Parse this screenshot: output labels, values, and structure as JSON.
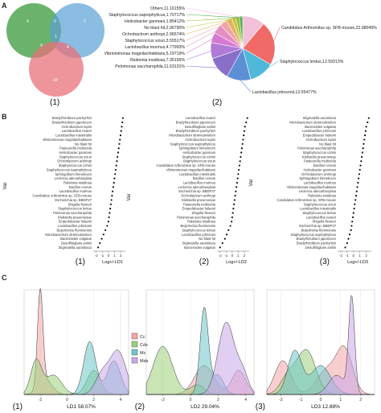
{
  "figure": {
    "panel_a": {
      "letter": "A",
      "venn": {
        "counts": [
          "4",
          "0",
          "2",
          "4",
          "1",
          "4",
          "10"
        ],
        "colors": [
          "#3a9a3a",
          "#5a9fd4",
          "#e8707a"
        ]
      },
      "pie": {
        "slices": [
          {
            "label": "Others,11.16155%",
            "value": 11.16155,
            "color": "#f2c0d9"
          },
          {
            "label": "Candidatus Arthromitus sp. SFB-mouse,22.08049%",
            "value": 22.08049,
            "color": "#f06a67"
          },
          {
            "label": "Staphylococcus lentus,12.59313%",
            "value": 12.59313,
            "color": "#4fb8d9"
          },
          {
            "label": "Lactobacillus johnsonii,12.05477%",
            "value": 12.05477,
            "color": "#5c8fd6"
          },
          {
            "label": "Pelomonas saccharophila,11.63131%",
            "value": 11.63131,
            "color": "#8a6fc8"
          },
          {
            "label": "Ralstonia insidiosa,7.95156%",
            "value": 7.95156,
            "color": "#b07ad6"
          },
          {
            "label": "Vibrionimonas magnilacihabitans,5.19719%",
            "value": 5.19719,
            "color": "#d47ad0"
          },
          {
            "label": "Lactobacillus murinus,4.77993%",
            "value": 4.77993,
            "color": "#e38ec0"
          },
          {
            "label": "Staphylococcus sciuri,3.55517%",
            "value": 3.55517,
            "color": "#f0a2a8"
          },
          {
            "label": "Ochrobactrum anthropi,2.96574%",
            "value": 2.96574,
            "color": "#e0b45a"
          },
          {
            "label": "No blast hit,2.06790%",
            "value": 2.0679,
            "color": "#c9c040"
          },
          {
            "label": "Helicobacter ganmani,1.85412%",
            "value": 1.85412,
            "color": "#8fbf3a"
          },
          {
            "label": "Staphylococcus saprophyticus,1.70717%",
            "value": 1.70717,
            "color": "#4fb04f"
          }
        ]
      },
      "captions": [
        "(1)",
        "(2)"
      ]
    },
    "panel_b": {
      "letter": "B",
      "y_title": "Var",
      "lda1": {
        "labels": [
          "Bradyrhizobium pachyrhizi",
          "Bradyrhizobium japonicum",
          "Ochrobactrum lupini",
          "Lactobacillus reuteri",
          "Lactobacillus intestinalis",
          "Vibrionimonas magnilacihabitans",
          "No blast hit",
          "Pasteurella multocida",
          "Helicobacter ganmani",
          "Staphylococcus sciuri",
          "Ochrobactrum anthropi",
          "Staphylococcus cohnii",
          "Staphylococcus saprophyticus",
          "Sphingobium limneticum",
          "Leclercia adecarboxylata",
          "Ralstonia insidiosa",
          "Bacillus cereus",
          "Lactobacillus murinus",
          "Candidatus Arthromitus sp. SFB-mouse",
          "Escherichia sp. BBDP27",
          "Shigella flexneri",
          "Staphylococcus lentus",
          "Pelomonas saccharophila",
          "Klebsiella pneumoniae",
          "Empedobacter falsenii",
          "Lactobacillus johnsonii",
          "Beijerinckia fluminensis",
          "Microbacterium deminutiviolum",
          "Bacteroides vulgatus",
          "Desulfitoglans anilini",
          "Stigmatella aurantiaca"
        ],
        "values": [
          2.4,
          2.3,
          2.2,
          2.1,
          2.0,
          1.9,
          1.8,
          1.7,
          1.6,
          1.5,
          1.4,
          1.3,
          1.2,
          1.1,
          1.0,
          0.9,
          0.8,
          0.7,
          0.6,
          0.5,
          0.4,
          0.3,
          0.2,
          0.1,
          0.0,
          -0.2,
          -0.5,
          -0.8,
          -1.1,
          -1.4,
          -1.7
        ],
        "xticks": [
          "-2",
          "-1",
          "0",
          "1",
          "2"
        ],
        "xlim": [
          -2.5,
          2.8
        ],
        "xlabel": "Log+/-LD1",
        "caption": "(1)"
      },
      "lda2": {
        "labels": [
          "Lactobacillus reuteri",
          "Bradyrhizobium japonicum",
          "Desulfitoglans anilini",
          "Bradyrhizobium pachyrhizi",
          "Microbacterium deminutiviolum",
          "Ochrobactrum lupini",
          "Staphylococcus saprophyticus",
          "Sphingobium limneticum",
          "Helicobacter ganmani",
          "Staphylococcus cohnii",
          "Staphylococcus sciuri",
          "Candidatus Arthromitus sp. SFB-mouse",
          "Vibrionimonas magnilacihabitans",
          "Lactobacillus intestinalis",
          "Bacillus cereus",
          "Lactobacillus murinus",
          "Leclercia adecarboxylata",
          "Escherichia sp. BBDP27",
          "Ochrobactrum anthropi",
          "Klebsiella pneumoniae",
          "Pasteurella multocida",
          "Empedobacter falsenii",
          "Shigella flexneri",
          "Pelomonas saccharophila",
          "Ralstonia insidiosa",
          "Beijerinckia fluminensis",
          "Staphylococcus lentus",
          "Lactobacillus johnsonii",
          "No blast hit",
          "Stigmatella aurantiaca",
          "Bacteroides vulgatus"
        ],
        "values": [
          2.5,
          2.3,
          2.1,
          2.0,
          1.9,
          1.8,
          1.7,
          1.6,
          1.5,
          1.4,
          1.3,
          1.2,
          1.1,
          1.0,
          0.9,
          0.8,
          0.7,
          0.6,
          0.5,
          0.4,
          0.3,
          0.2,
          0.1,
          0.0,
          -0.1,
          -0.3,
          -0.6,
          -0.9,
          -1.2,
          -1.6,
          -2.0
        ],
        "xticks": [
          "-2",
          "-1",
          "0",
          "1",
          "2"
        ],
        "xlim": [
          -2.5,
          2.8
        ],
        "xlabel": "Log+/-LD2",
        "caption": "(2)"
      },
      "lda3": {
        "labels": [
          "Stigmatella aurantiaca",
          "Microbacterium deminutiviolum",
          "Bacteroides vulgatus",
          "Lactobacillus johnsonii",
          "Empedobacter falsenii",
          "Ochrobactrum lupini",
          "No blast hit",
          "Pelomonas saccharophila",
          "Staphylococcus cohnii",
          "Klebsiella pneumoniae",
          "Pasteurella multocida",
          "Bacillus cereus",
          "Helicobacter ganmani",
          "Ochrobactrum anthropi",
          "Sphingobium limneticum",
          "Lactobacillus murinus",
          "Vibrionimonas magnilacihabitans",
          "Leclercia adecarboxylata",
          "Ralstonia insidiosa",
          "Candidatus Arthromitus sp. SFB-mouse",
          "Staphylococcus sciuri",
          "Lactobacillus intestinalis",
          "Staphylococcus lentus",
          "Lactobacillus reuteri",
          "Shigella flexneri",
          "Escherichia sp. BBDP27",
          "Beijerinckia fluminensis",
          "Staphylococcus saprophyticus",
          "Bradyrhizobium japonicum",
          "Bradyrhizobium pachyrhizi",
          "Desulfitoglans anilini"
        ],
        "values": [
          2.4,
          2.2,
          2.0,
          1.9,
          1.8,
          1.7,
          1.6,
          1.5,
          1.4,
          1.3,
          1.2,
          1.1,
          1.0,
          0.9,
          0.8,
          0.7,
          0.6,
          0.5,
          0.4,
          0.3,
          0.2,
          0.1,
          0.0,
          -0.1,
          -0.2,
          -0.3,
          -0.4,
          -0.6,
          -0.8,
          -1.0,
          -1.3
        ],
        "xticks": [
          "-2",
          "-1",
          "0",
          "1",
          "2"
        ],
        "xlim": [
          -2.5,
          2.8
        ],
        "xlabel": "Log+/-LD3",
        "caption": "(3)"
      }
    },
    "panel_c": {
      "letter": "C",
      "legend": [
        {
          "label": "Cc",
          "color": "#f4a5a5"
        },
        {
          "label": "Cds",
          "color": "#9ccf7a"
        },
        {
          "label": "Mc",
          "color": "#6ec7c8"
        },
        {
          "label": "Mds",
          "color": "#c9a8ea"
        }
      ],
      "density1": {
        "xlabel": "LD1 58.07%",
        "xticks": [
          "-2",
          "0",
          "2",
          "4"
        ],
        "caption": "(1)"
      },
      "density2": {
        "xlabel": "LD2 29.04%",
        "xticks": [
          "-2",
          "0",
          "2",
          "4"
        ],
        "caption": "(2)"
      },
      "density3": {
        "xlabel": "LD3 12.88%",
        "xticks": [
          "-2",
          "-1",
          "0",
          "1",
          "2"
        ],
        "caption": "(3)"
      }
    }
  }
}
